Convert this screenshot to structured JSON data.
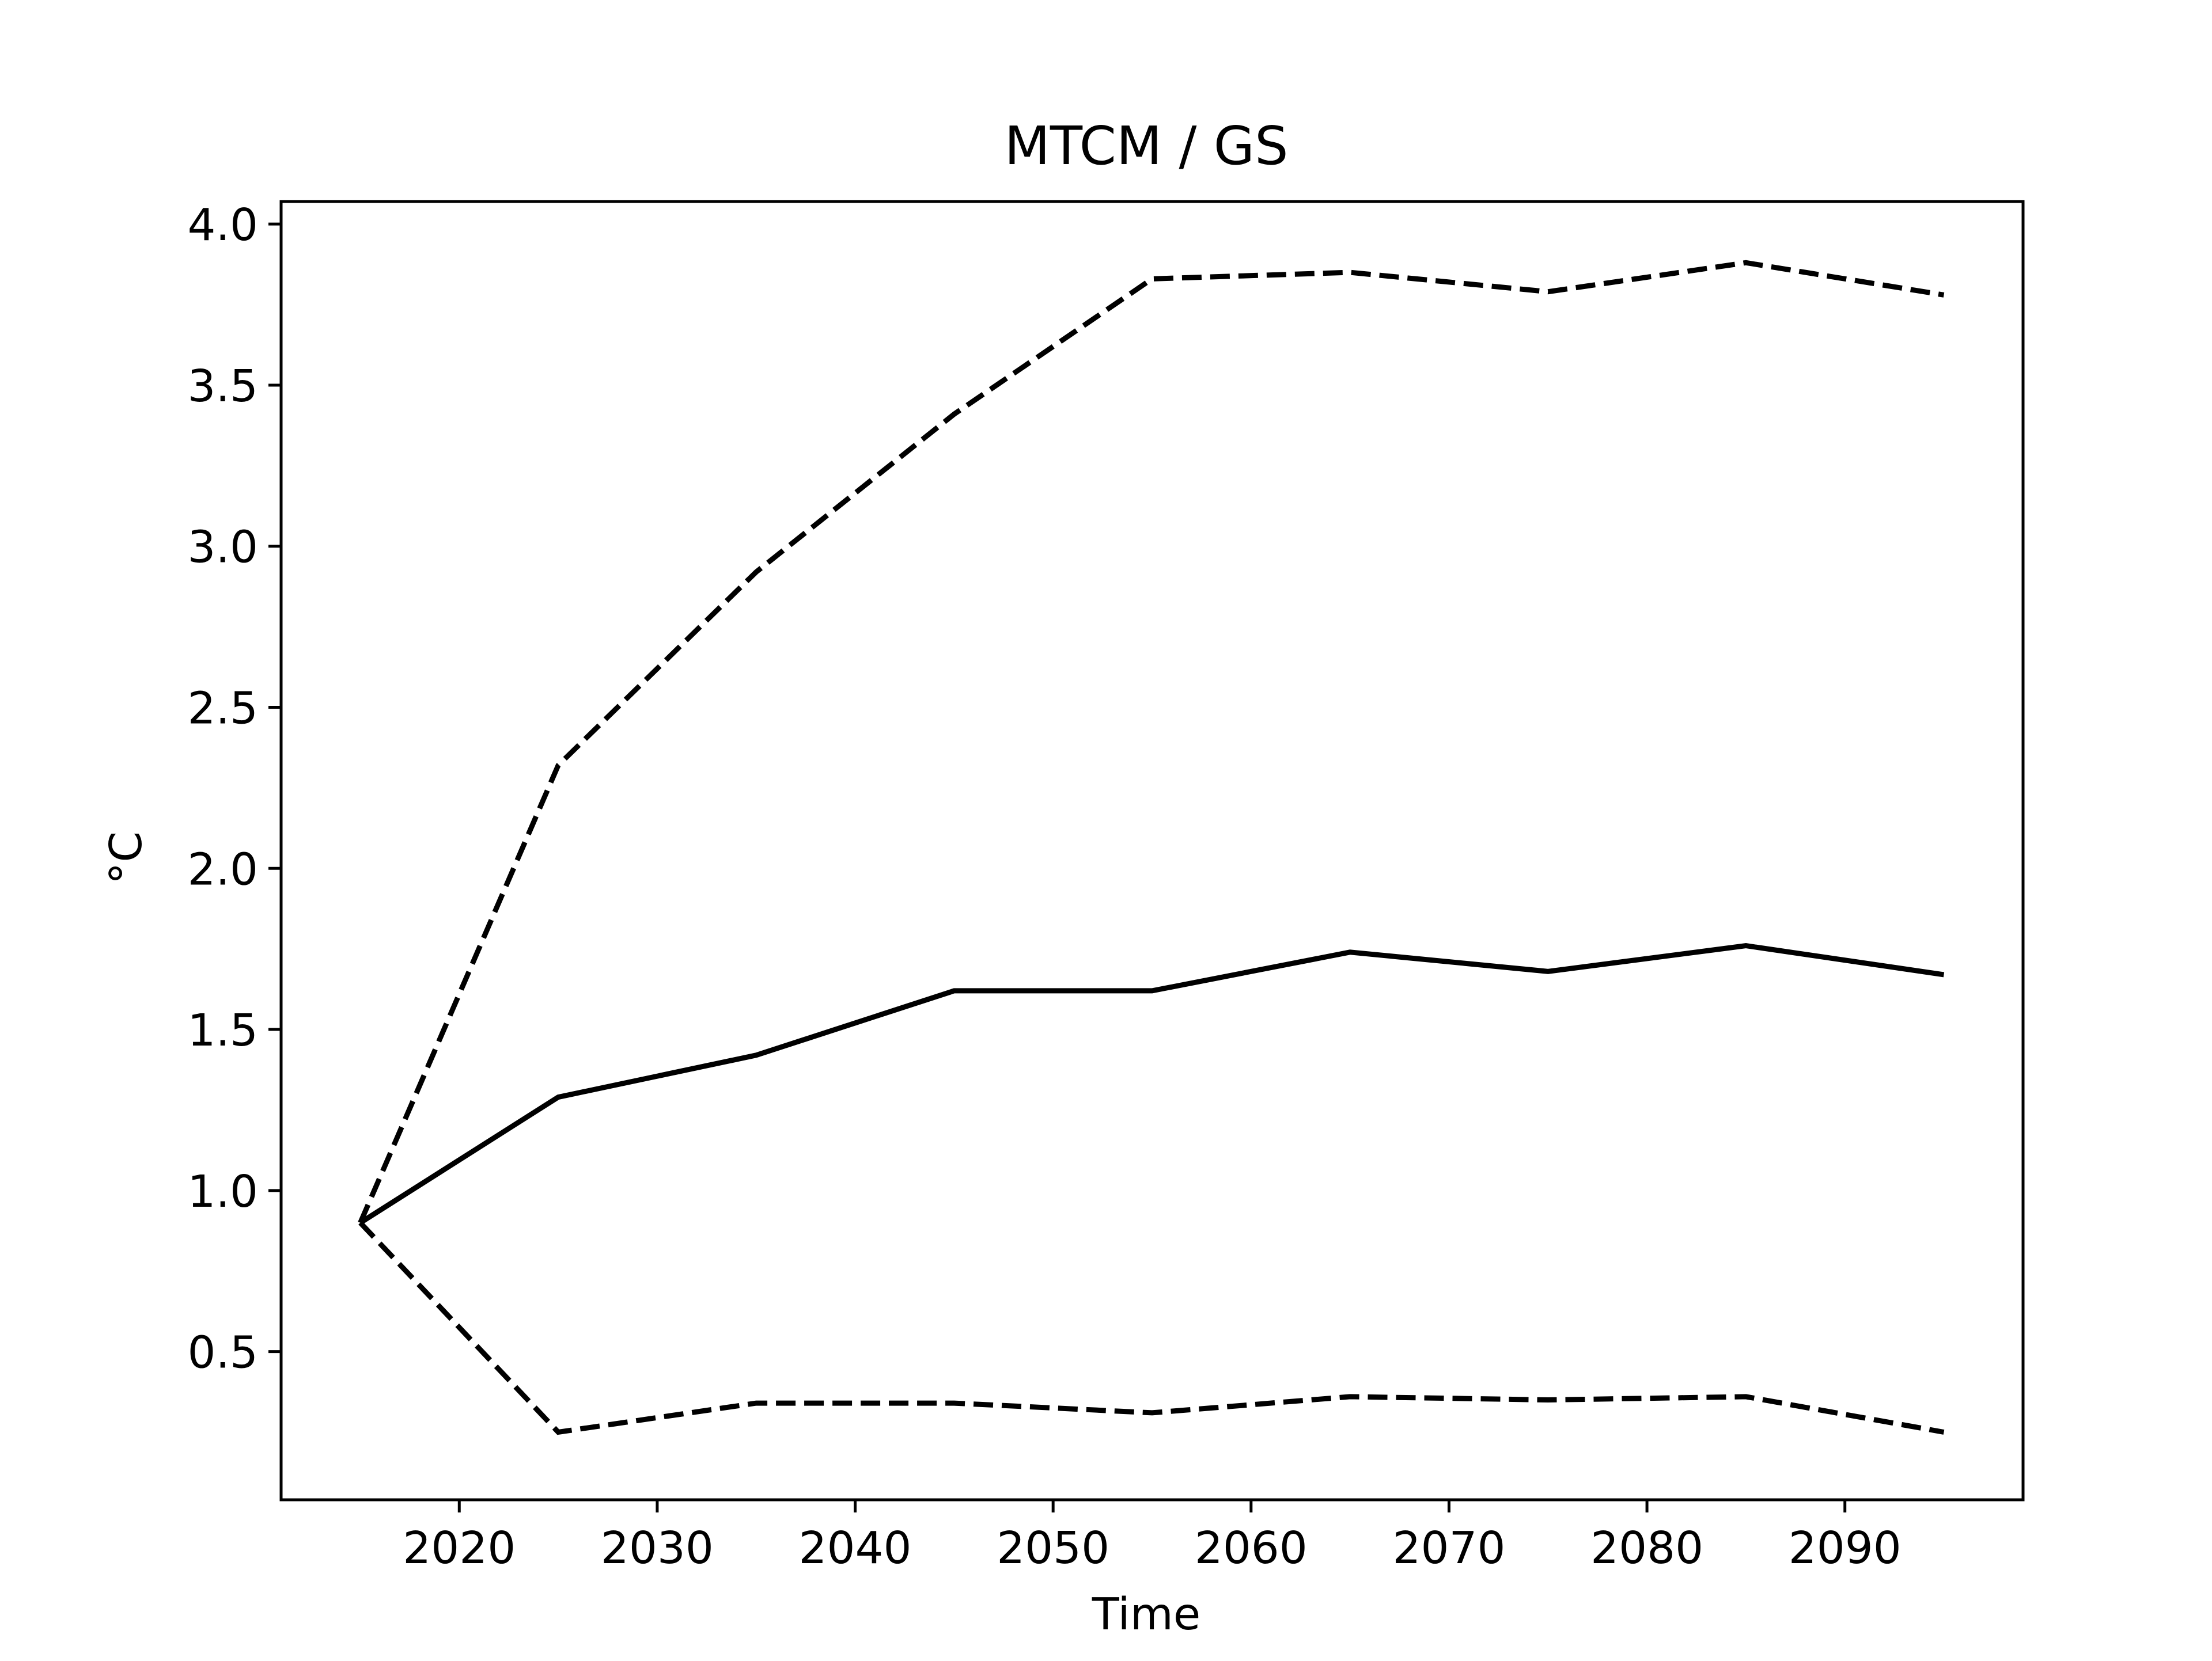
{
  "chart_data": {
    "type": "line",
    "title": "MTCM / GS",
    "xlabel": "Time",
    "ylabel": "°C",
    "x": [
      2015,
      2025,
      2035,
      2045,
      2055,
      2065,
      2075,
      2085,
      2095
    ],
    "xlim": [
      2011,
      2099
    ],
    "ylim": [
      0.04,
      4.07
    ],
    "xticks": [
      2020,
      2030,
      2040,
      2050,
      2060,
      2070,
      2080,
      2090
    ],
    "yticks": [
      0.5,
      1.0,
      1.5,
      2.0,
      2.5,
      3.0,
      3.5,
      4.0
    ],
    "xtick_labels": [
      "2020",
      "2030",
      "2040",
      "2050",
      "2060",
      "2070",
      "2080",
      "2090"
    ],
    "ytick_labels": [
      "0.5",
      "1.0",
      "1.5",
      "2.0",
      "2.5",
      "3.0",
      "3.5",
      "4.0"
    ],
    "grid": false,
    "legend": "none",
    "series": [
      {
        "values": [
          0.9,
          2.32,
          2.92,
          3.41,
          3.83,
          3.85,
          3.79,
          3.88,
          3.78
        ],
        "style": "dashed",
        "color": "#000000"
      },
      {
        "values": [
          0.9,
          1.29,
          1.42,
          1.62,
          1.62,
          1.74,
          1.68,
          1.76,
          1.67
        ],
        "style": "solid",
        "color": "#000000"
      },
      {
        "values": [
          0.9,
          0.25,
          0.34,
          0.34,
          0.31,
          0.36,
          0.35,
          0.36,
          0.25
        ],
        "style": "dashed",
        "color": "#000000"
      }
    ]
  }
}
